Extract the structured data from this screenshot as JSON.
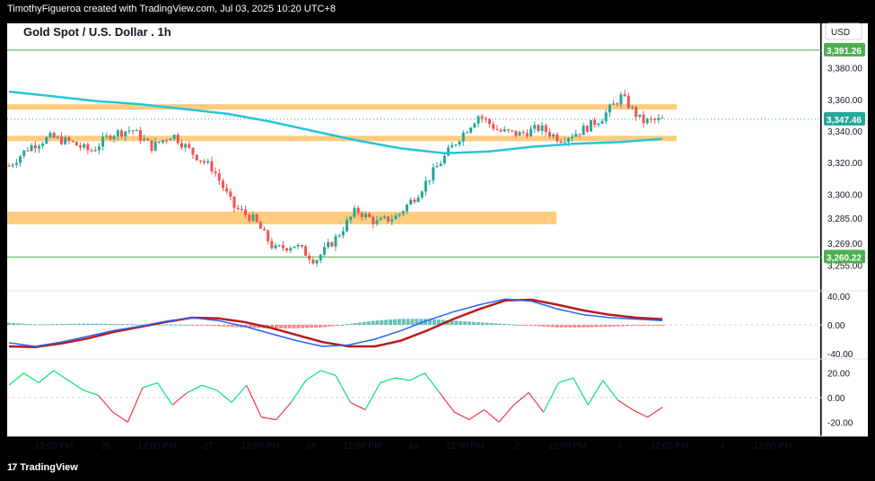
{
  "header": {
    "credit": "TimothyFigueroa created with TradingView.com, Jul 03, 2025 10:20 UTC+8"
  },
  "footer": {
    "brand": "TradingView",
    "logo_icon": "tradingview-logo-icon"
  },
  "chart_data": [
    {
      "type": "candlestick",
      "title": "Gold Spot / U.S. Dollar . 1h",
      "currency": "USD",
      "ylim": [
        3240,
        3398
      ],
      "y_ticks": [
        "3,380.00",
        "3,360.00",
        "3,340.00",
        "3,320.00",
        "3,300.00",
        "3,285.00",
        "3,269.00",
        "3,255.00"
      ],
      "y_tick_values": [
        3380,
        3360,
        3340,
        3320,
        3300,
        3285,
        3269,
        3255
      ],
      "x_ticks": [
        "12:00 PM",
        "26",
        "12:00 PM",
        "27",
        "12:00 PM",
        "28",
        "12:00 PM",
        "Jul",
        "12:00 PM",
        "2",
        "12:00 PM",
        "3",
        "12:00 PM",
        "4",
        "12:00 PM"
      ],
      "price_labels": [
        {
          "text": "3,391.26",
          "value": 3391.26,
          "color": "#4caf50"
        },
        {
          "text": "3,347.46",
          "value": 3347.46,
          "color": "#26a69a"
        },
        {
          "text": "3,260.22",
          "value": 3260.22,
          "color": "#4caf50"
        }
      ],
      "horizontal_lines": [
        {
          "value": 3391.26,
          "color": "#4caf50"
        },
        {
          "value": 3260.22,
          "color": "#4caf50"
        }
      ],
      "zones": [
        {
          "from": 3354,
          "to": 3357,
          "color": "#ffcc80"
        },
        {
          "from": 3334,
          "to": 3337,
          "color": "#ffcc80"
        },
        {
          "from": 3281,
          "to": 3289,
          "color": "#ffcc80"
        }
      ],
      "series": [
        {
          "name": "price",
          "start": 3318,
          "approx_closes": [
            3318,
            3330,
            3336,
            3333,
            3327,
            3338,
            3341,
            3330,
            3338,
            3326,
            3316,
            3292,
            3284,
            3265,
            3268,
            3258,
            3272,
            3290,
            3282,
            3286,
            3300,
            3318,
            3335,
            3350,
            3340,
            3338,
            3342,
            3335,
            3340,
            3348,
            3362,
            3346,
            3347
          ]
        },
        {
          "name": "moving-average",
          "color": "#26c6da",
          "approx_values": [
            3365,
            3362,
            3359,
            3357,
            3354,
            3351,
            3346,
            3340,
            3334,
            3329,
            3326,
            3327,
            3330,
            3332,
            3333,
            3335
          ]
        }
      ]
    },
    {
      "type": "histogram",
      "name": "momentum oscillator",
      "y_ticks": [
        "40.00",
        "0.00",
        "-40.00"
      ],
      "y_tick_values": [
        40,
        0,
        -40
      ],
      "fast_line_color": "#2962ff",
      "slow_line_color": "#b71c1c",
      "up_color": "#4caf50",
      "down_color": "#f23645",
      "fast": [
        -25,
        -30,
        -24,
        -16,
        -8,
        -2,
        5,
        10,
        6,
        -2,
        -12,
        -22,
        -30,
        -28,
        -20,
        -8,
        6,
        18,
        28,
        36,
        33,
        22,
        14,
        10,
        8,
        6
      ],
      "slow": [
        -30,
        -31,
        -26,
        -19,
        -10,
        -3,
        4,
        10,
        9,
        4,
        -4,
        -14,
        -24,
        -30,
        -30,
        -22,
        -8,
        8,
        22,
        34,
        35,
        28,
        20,
        14,
        10,
        8
      ]
    },
    {
      "type": "line",
      "name": "signal oscillator",
      "y_ticks": [
        "20.00",
        "0.00",
        "-20.00"
      ],
      "y_tick_values": [
        20,
        0,
        -20
      ],
      "up_color": "#00e676",
      "down_color": "#f23645",
      "values": [
        10,
        20,
        12,
        22,
        14,
        6,
        2,
        -12,
        -20,
        8,
        12,
        -6,
        4,
        10,
        6,
        -4,
        10,
        -16,
        -18,
        -4,
        14,
        22,
        18,
        -4,
        -10,
        12,
        16,
        14,
        20,
        4,
        -12,
        -18,
        -10,
        -20,
        -6,
        4,
        -12,
        12,
        16,
        -6,
        14,
        -2,
        -10,
        -16,
        -8
      ]
    }
  ]
}
